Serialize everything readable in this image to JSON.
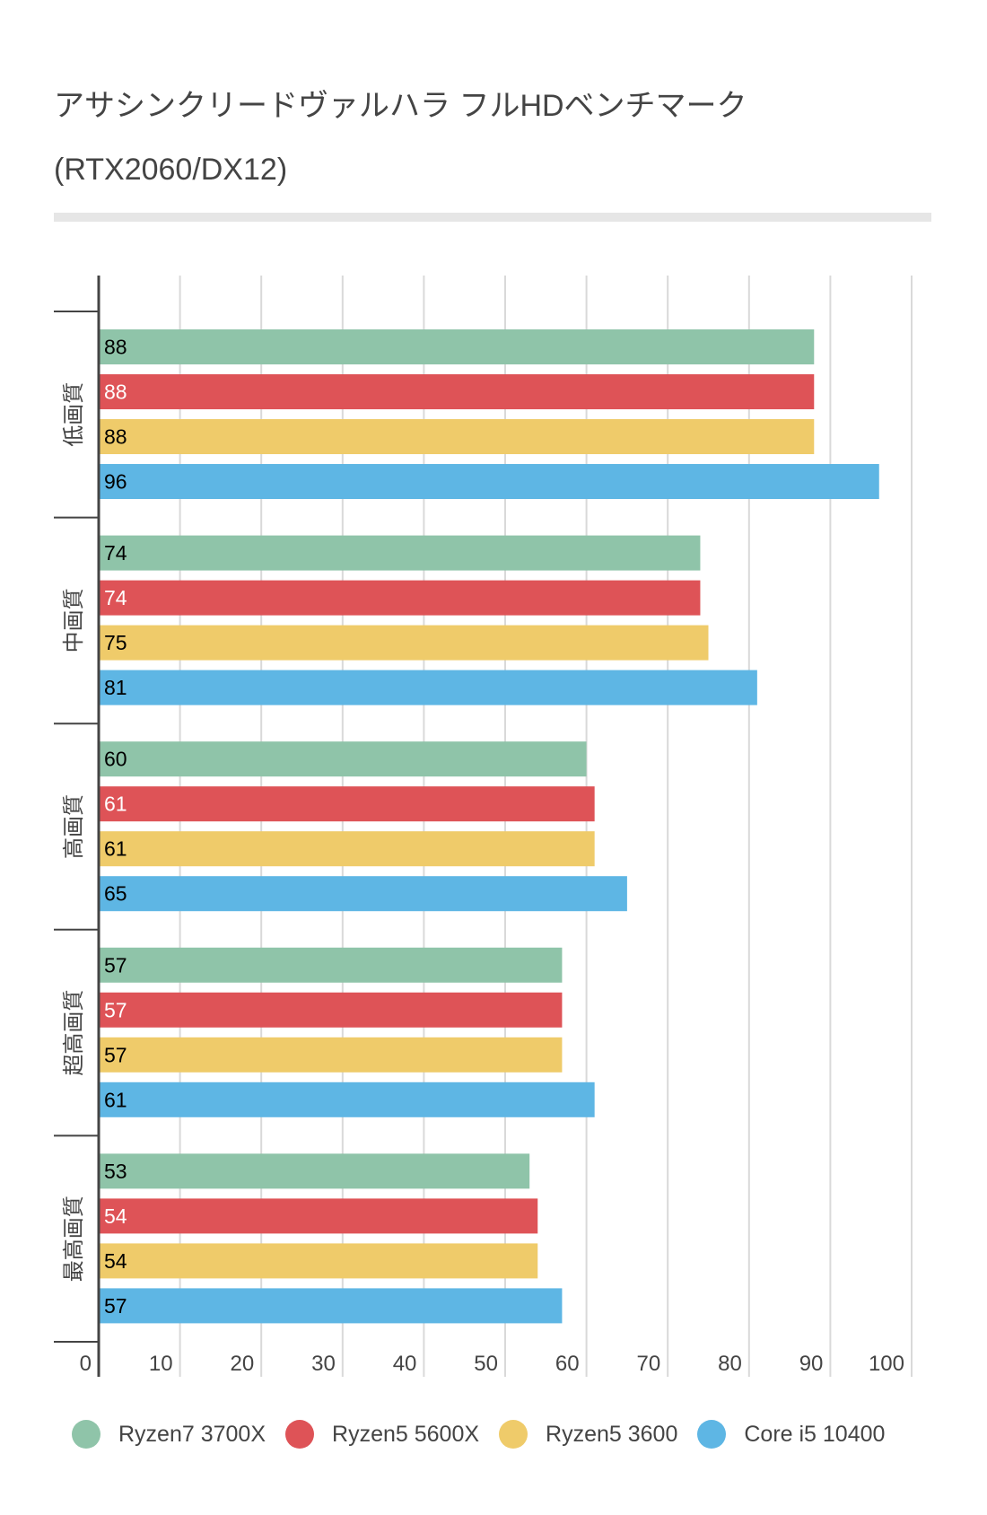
{
  "chart_data": {
    "type": "bar",
    "orientation": "horizontal",
    "title": "アサシンクリードヴァルハラ フルHDベンチマーク",
    "subtitle": "(RTX2060/DX12)",
    "categories": [
      "低画質",
      "中画質",
      "高画質",
      "超高画質",
      "最高画質"
    ],
    "series": [
      {
        "name": "Ryzen7 3700X",
        "color": "#8fc4a9",
        "label_color": "#000000",
        "values": [
          88,
          74,
          60,
          57,
          53
        ]
      },
      {
        "name": "Ryzen5 5600X",
        "color": "#de5357",
        "label_color": "#ffffff",
        "values": [
          88,
          74,
          61,
          57,
          54
        ]
      },
      {
        "name": "Ryzen5 3600",
        "color": "#efcb6a",
        "label_color": "#000000",
        "values": [
          88,
          75,
          61,
          57,
          54
        ]
      },
      {
        "name": "Core i5 10400",
        "color": "#5eb6e4",
        "label_color": "#000000",
        "values": [
          96,
          81,
          65,
          61,
          57
        ]
      }
    ],
    "xlim": [
      0,
      100
    ],
    "xticks": [
      "0",
      "10",
      "20",
      "30",
      "40",
      "50",
      "60",
      "70",
      "80",
      "90",
      "100"
    ],
    "grid": true,
    "legend": "bottom"
  }
}
